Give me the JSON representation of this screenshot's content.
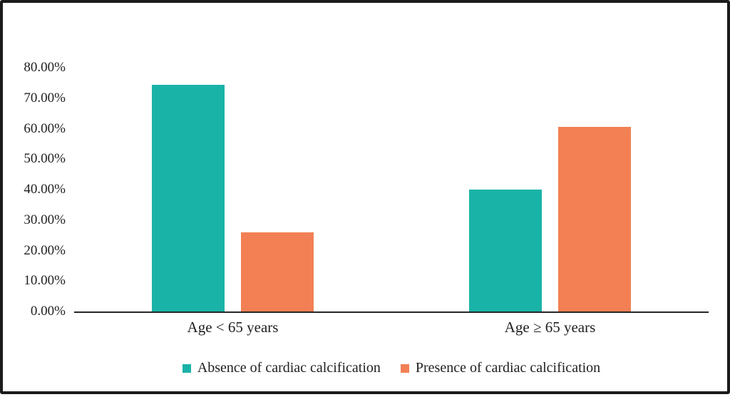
{
  "figure": {
    "background": "#ffffff",
    "border_color": "#1b1b1b",
    "axis_line_color": "#262626",
    "text_color": "#1f1f1f"
  },
  "chart_data": {
    "type": "bar",
    "title": "",
    "xlabel": "",
    "ylabel": "",
    "categories": [
      "Age < 65 years",
      "Age ≥ 65 years"
    ],
    "series": [
      {
        "name": "Absence of cardiac calcification",
        "color": "#1AB3A8",
        "values": [
          74.5,
          40
        ]
      },
      {
        "name": "Presence of cardiac calcification",
        "color": "#F28054",
        "values": [
          26,
          60.5
        ]
      }
    ],
    "ylim": [
      0,
      80
    ],
    "ytick_step": 10,
    "ytick_labels": [
      "0.00%",
      "10.00%",
      "20.00%",
      "30.00%",
      "40.00%",
      "50.00%",
      "60.00%",
      "70.00%",
      "80.00%"
    ],
    "grid": false,
    "legend_position": "bottom"
  }
}
